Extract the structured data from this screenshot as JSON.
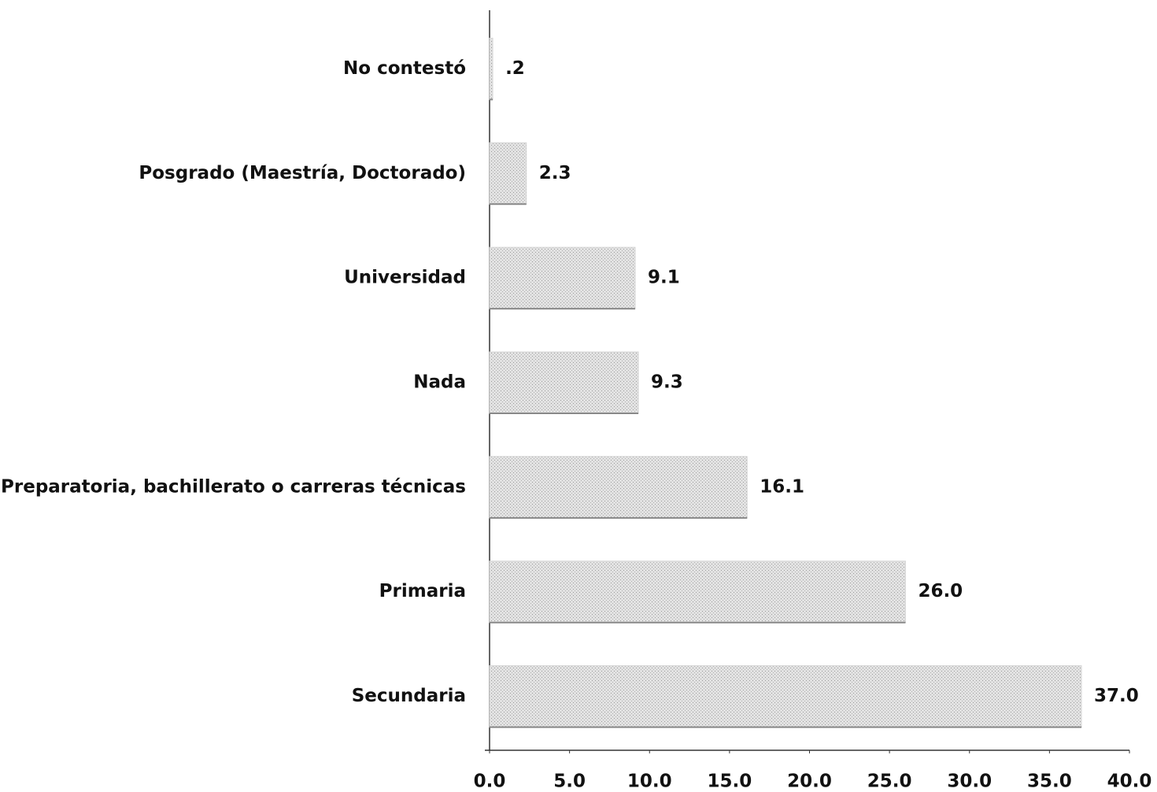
{
  "chart_data": {
    "type": "hbar",
    "categories": [
      "No contestó",
      "Posgrado (Maestría, Doctorado)",
      "Universidad",
      "Nada",
      "Preparatoria, bachillerato o carreras técnicas",
      "Primaria",
      "Secundaria"
    ],
    "values": [
      0.2,
      2.3,
      9.1,
      9.3,
      16.1,
      26.0,
      37.0
    ],
    "value_labels": [
      ".2",
      "2.3",
      "9.1",
      "9.3",
      "16.1",
      "26.0",
      "37.0"
    ],
    "color": "#d6d6d6",
    "xlim": [
      0,
      40
    ],
    "xticks": [
      {
        "value": 0,
        "label": "0.0"
      },
      {
        "value": 5,
        "label": "5.0"
      },
      {
        "value": 10,
        "label": "10.0"
      },
      {
        "value": 15,
        "label": "15.0"
      },
      {
        "value": 20,
        "label": "20.0"
      },
      {
        "value": 25,
        "label": "25.0"
      },
      {
        "value": 30,
        "label": "30.0"
      },
      {
        "value": 35,
        "label": "35.0"
      },
      {
        "value": 40,
        "label": "40.0"
      }
    ]
  }
}
